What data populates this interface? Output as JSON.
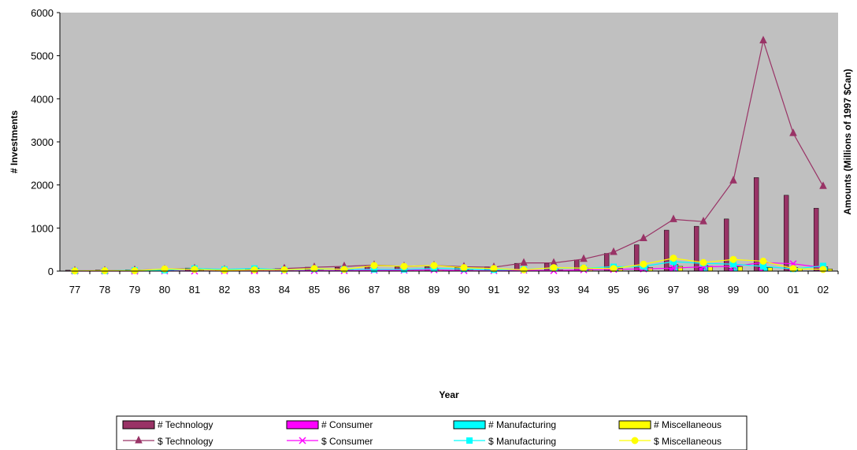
{
  "chart_data": {
    "type": "bar",
    "categories": [
      "77",
      "78",
      "79",
      "80",
      "81",
      "82",
      "83",
      "84",
      "85",
      "86",
      "87",
      "88",
      "89",
      "90",
      "91",
      "92",
      "93",
      "94",
      "95",
      "96",
      "97",
      "98",
      "99",
      "00",
      "01",
      "02"
    ],
    "xlabel": "Year",
    "ylabel": "# Investments",
    "y2label": "Amounts (Millions of 1997 $Can)",
    "ylim": [
      0,
      6000
    ],
    "yticks": [
      "0",
      "1000",
      "2000",
      "3000",
      "4000",
      "5000",
      "6000"
    ],
    "plot_background": "#c0c0c0",
    "legend_position": "bottom",
    "bar_series": [
      {
        "name": "# Technology",
        "color": "#993366",
        "values": [
          20,
          25,
          30,
          40,
          70,
          40,
          45,
          55,
          90,
          90,
          110,
          100,
          100,
          80,
          100,
          180,
          180,
          260,
          410,
          610,
          950,
          1040,
          1210,
          2170,
          1760,
          1460
        ]
      },
      {
        "name": "# Consumer",
        "color": "#ff00ff",
        "values": [
          5,
          5,
          5,
          5,
          10,
          5,
          5,
          5,
          10,
          10,
          15,
          20,
          25,
          15,
          10,
          10,
          15,
          20,
          30,
          50,
          90,
          80,
          60,
          90,
          70,
          40
        ]
      },
      {
        "name": "# Manufacturing",
        "color": "#00ffff",
        "values": [
          10,
          15,
          25,
          30,
          60,
          45,
          70,
          40,
          40,
          30,
          40,
          40,
          40,
          35,
          30,
          40,
          80,
          80,
          100,
          120,
          150,
          130,
          110,
          80,
          80,
          100
        ]
      },
      {
        "name": "# Miscellaneous",
        "color": "#ffff00",
        "values": [
          5,
          5,
          5,
          10,
          20,
          20,
          20,
          15,
          20,
          20,
          20,
          20,
          25,
          20,
          15,
          15,
          30,
          40,
          60,
          80,
          110,
          110,
          100,
          80,
          60,
          50
        ]
      }
    ],
    "line_series": [
      {
        "name": "$ Technology",
        "color": "#993366",
        "marker": "triangle",
        "values": [
          10,
          10,
          20,
          40,
          60,
          30,
          20,
          60,
          90,
          110,
          140,
          110,
          130,
          100,
          90,
          190,
          190,
          280,
          440,
          760,
          1200,
          1150,
          2100,
          5350,
          3200,
          1970
        ]
      },
      {
        "name": "$ Consumer",
        "color": "#ff00ff",
        "marker": "x",
        "values": [
          0,
          0,
          0,
          5,
          0,
          5,
          5,
          5,
          10,
          10,
          20,
          20,
          30,
          10,
          10,
          20,
          10,
          30,
          40,
          50,
          70,
          100,
          110,
          200,
          170,
          80
        ]
      },
      {
        "name": "$ Manufacturing",
        "color": "#00ffff",
        "marker": "square",
        "values": [
          5,
          5,
          20,
          20,
          60,
          40,
          60,
          30,
          50,
          40,
          40,
          40,
          60,
          50,
          30,
          40,
          70,
          70,
          100,
          110,
          220,
          180,
          160,
          110,
          50,
          120
        ]
      },
      {
        "name": "$ Miscellaneous",
        "color": "#ffff00",
        "marker": "circle",
        "values": [
          5,
          10,
          10,
          50,
          40,
          20,
          30,
          30,
          60,
          40,
          130,
          110,
          130,
          80,
          60,
          30,
          80,
          70,
          60,
          160,
          300,
          200,
          270,
          230,
          60,
          40
        ]
      }
    ]
  }
}
